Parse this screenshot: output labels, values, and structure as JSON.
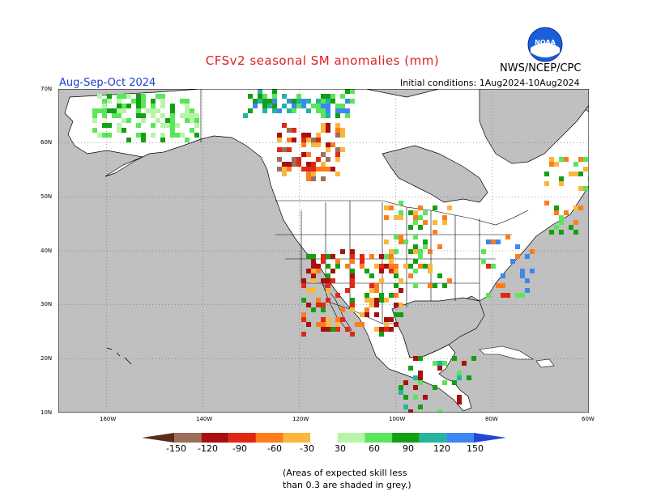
{
  "header": {
    "title": "CFSv2 seasonal SM anomalies (mm)",
    "agency": "NWS/NCEP/CPC",
    "season": "Aug-Sep-Oct 2024",
    "initial_conditions": "Initial conditions: 1Aug2024-10Aug2024",
    "logo_text": "NOAA"
  },
  "map": {
    "lat_labels": [
      "70N",
      "60N",
      "50N",
      "40N",
      "30N",
      "20N",
      "10N"
    ],
    "lon_labels": [
      "160W",
      "140W",
      "120W",
      "100W",
      "80W",
      "60W"
    ],
    "skill_mask_color": "#c0c0c0",
    "land_no_anomaly_color": "#ffffff"
  },
  "colorbar": {
    "ticks": [
      "-150",
      "-120",
      "-90",
      "-60",
      "-30",
      "30",
      "60",
      "90",
      "120",
      "150"
    ],
    "colors": [
      "#5a2c1c",
      "#9e6e5a",
      "#a81010",
      "#e02814",
      "#ff7c1e",
      "#fbb63c",
      "#ffffff",
      "#b8f5a8",
      "#5ae65a",
      "#12a012",
      "#24b4a0",
      "#3f87f0",
      "#1e46d8"
    ]
  },
  "footnote": {
    "line1": "(Areas of expected skill less",
    "line2": "than 0.3 are shaded in grey.)"
  }
}
